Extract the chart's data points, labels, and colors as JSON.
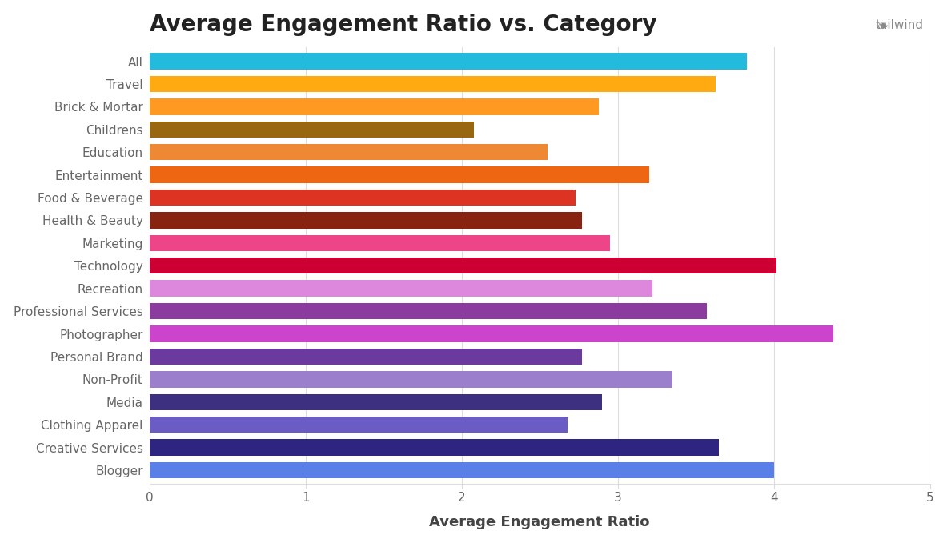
{
  "title": "Average Engagement Ratio vs. Category",
  "xlabel": "Average Engagement Ratio",
  "categories": [
    "Blogger",
    "Creative Services",
    "Clothing Apparel",
    "Media",
    "Non-Profit",
    "Personal Brand",
    "Photographer",
    "Professional Services",
    "Recreation",
    "Technology",
    "Marketing",
    "Health & Beauty",
    "Food & Beverage",
    "Entertainment",
    "Education",
    "Childrens",
    "Brick & Mortar",
    "Travel",
    "All"
  ],
  "values": [
    4.0,
    3.65,
    2.68,
    2.9,
    3.35,
    2.77,
    4.38,
    3.57,
    3.22,
    4.02,
    2.95,
    2.77,
    2.73,
    3.2,
    2.55,
    2.08,
    2.88,
    3.63,
    3.83
  ],
  "colors": [
    "#5B7FE8",
    "#2D2580",
    "#6B5BC4",
    "#3D3080",
    "#9B7FCC",
    "#6B3A9E",
    "#CC44CC",
    "#8B3A9E",
    "#DD88DD",
    "#CC0033",
    "#EE4488",
    "#882211",
    "#DD3322",
    "#EE6611",
    "#EE8833",
    "#996611",
    "#FF9922",
    "#FFAA11",
    "#22BBDD"
  ],
  "xlim": [
    0,
    5
  ],
  "xticks": [
    0,
    1,
    2,
    3,
    4,
    5
  ],
  "grid_color": "#dddddd",
  "background_color": "#ffffff",
  "title_fontsize": 20,
  "label_fontsize": 13,
  "tick_fontsize": 11,
  "bar_height": 0.72,
  "figsize": [
    11.83,
    6.79
  ],
  "dpi": 100
}
